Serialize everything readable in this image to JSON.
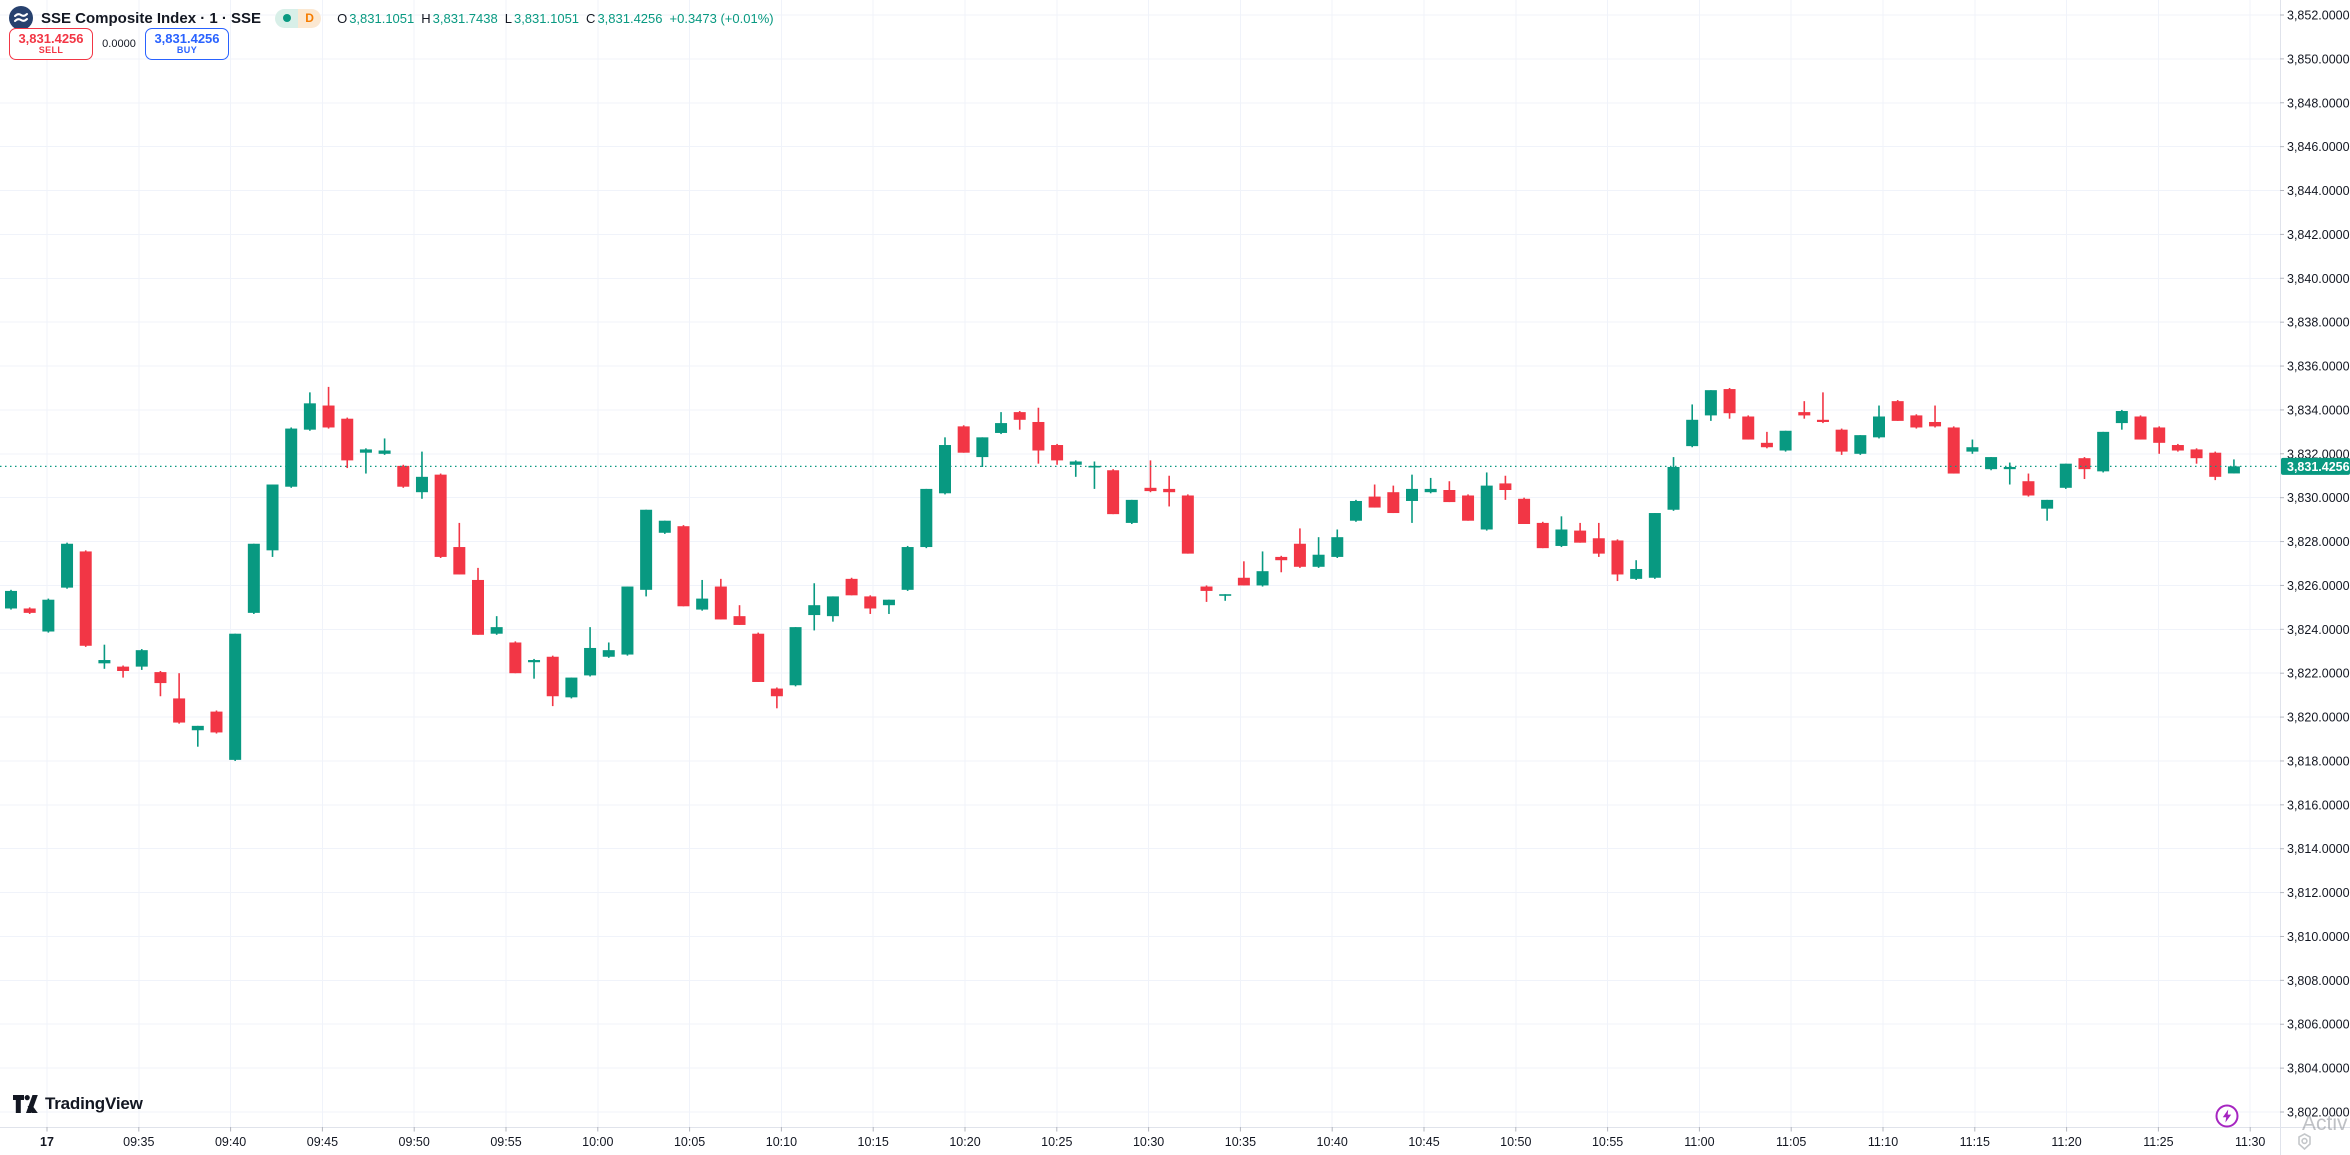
{
  "header": {
    "symbol_title": "SSE Composite Index · 1 · SSE",
    "market_status": "open",
    "interval_badge": "D",
    "ohlc": {
      "o_label": "O",
      "o": "3,831.1051",
      "h_label": "H",
      "h": "3,831.7438",
      "l_label": "L",
      "l": "3,831.1051",
      "c_label": "C",
      "c": "3,831.4256",
      "change": "+0.3473 (+0.01%)"
    },
    "sell_button": {
      "price": "3,831.4256",
      "label": "SELL"
    },
    "spread": "0.0000",
    "buy_button": {
      "price": "3,831.4256",
      "label": "BUY"
    }
  },
  "colors": {
    "up": "#089981",
    "down": "#f23645",
    "sell": "#f23645",
    "buy": "#2962ff",
    "grid": "#f0f3fa",
    "axis_text": "#131722",
    "axis_border": "#e0e3eb",
    "tick": "#b2b5be",
    "current_price_bg": "#089981",
    "lightning": "#a626c1",
    "badge_orange": "#f57c00"
  },
  "footer": {
    "logo_text": "TradingView"
  },
  "watermark": {
    "text": "Activ"
  },
  "chart_data": {
    "type": "candlestick",
    "title": "SSE Composite Index, 1 minute",
    "ylim": [
      3802,
      3852
    ],
    "grid": true,
    "y_ticks": [
      3852,
      3850,
      3848,
      3846,
      3844,
      3842,
      3840,
      3838,
      3836,
      3834,
      3832,
      3830,
      3828,
      3826,
      3824,
      3822,
      3820,
      3818,
      3816,
      3814,
      3812,
      3810,
      3808,
      3806,
      3804,
      3802
    ],
    "x_ticks": [
      "17",
      "09:35",
      "09:40",
      "09:45",
      "09:50",
      "09:55",
      "10:00",
      "10:05",
      "10:10",
      "10:15",
      "10:20",
      "10:25",
      "10:30",
      "10:35",
      "10:40",
      "10:45",
      "10:50",
      "10:55",
      "11:00",
      "11:05",
      "11:10",
      "11:15",
      "11:20",
      "11:25",
      "11:30"
    ],
    "current_price": 3831.4256,
    "current_price_label": "3,831.4256",
    "x": [
      "09:31",
      "09:32",
      "09:33",
      "09:34",
      "09:35",
      "09:36",
      "09:37",
      "09:38",
      "09:39",
      "09:40",
      "09:41",
      "09:42",
      "09:43",
      "09:44",
      "09:45",
      "09:46",
      "09:47",
      "09:48",
      "09:49",
      "09:50",
      "09:51",
      "09:52",
      "09:53",
      "09:54",
      "09:55",
      "09:56",
      "09:57",
      "09:58",
      "09:59",
      "10:00",
      "10:01",
      "10:02",
      "10:03",
      "10:04",
      "10:05",
      "10:06",
      "10:07",
      "10:08",
      "10:09",
      "10:10",
      "10:11",
      "10:12",
      "10:13",
      "10:14",
      "10:15",
      "10:16",
      "10:17",
      "10:18",
      "10:19",
      "10:20",
      "10:21",
      "10:22",
      "10:23",
      "10:24",
      "10:25",
      "10:26",
      "10:27",
      "10:28",
      "10:29",
      "10:30",
      "10:31",
      "10:32",
      "10:33",
      "10:34",
      "10:35",
      "10:36",
      "10:37",
      "10:38",
      "10:39",
      "10:40",
      "10:41",
      "10:42",
      "10:43",
      "10:44",
      "10:45",
      "10:46",
      "10:47",
      "10:48",
      "10:49",
      "10:50",
      "10:51",
      "10:52",
      "10:53",
      "10:54",
      "10:55",
      "10:56",
      "10:57",
      "10:58",
      "10:59",
      "11:00",
      "11:01",
      "11:02",
      "11:03",
      "11:04",
      "11:05",
      "11:06",
      "11:07",
      "11:08",
      "11:09",
      "11:10",
      "11:11",
      "11:12",
      "11:13",
      "11:14",
      "11:15",
      "11:16",
      "11:17",
      "11:18",
      "11:19",
      "11:20",
      "11:21",
      "11:22",
      "11:23",
      "11:24",
      "11:25",
      "11:26",
      "11:27",
      "11:28",
      "11:29",
      "11:30"
    ],
    "ohlc": [
      [
        3824.95,
        3825.8,
        3824.9,
        3825.75
      ],
      [
        3824.95,
        3825.0,
        3824.7,
        3824.75
      ],
      [
        3823.9,
        3825.4,
        3823.85,
        3825.35
      ],
      [
        3825.9,
        3827.95,
        3825.85,
        3827.9
      ],
      [
        3827.55,
        3827.6,
        3823.2,
        3823.25
      ],
      [
        3822.45,
        3823.3,
        3822.2,
        3822.6
      ],
      [
        3822.3,
        3822.35,
        3821.8,
        3822.1
      ],
      [
        3822.3,
        3823.1,
        3822.15,
        3823.05
      ],
      [
        3822.05,
        3822.1,
        3820.95,
        3821.55
      ],
      [
        3820.85,
        3822.0,
        3819.7,
        3819.75
      ],
      [
        3819.4,
        3819.6,
        3818.65,
        3819.6
      ],
      [
        3820.25,
        3820.3,
        3819.25,
        3819.3
      ],
      [
        3818.05,
        3823.8,
        3818.0,
        3823.8
      ],
      [
        3824.75,
        3827.9,
        3824.7,
        3827.9
      ],
      [
        3827.6,
        3830.6,
        3827.3,
        3830.6
      ],
      [
        3830.5,
        3833.2,
        3830.45,
        3833.15
      ],
      [
        3833.1,
        3834.8,
        3833.05,
        3834.3
      ],
      [
        3834.2,
        3835.05,
        3833.15,
        3833.2
      ],
      [
        3833.6,
        3833.65,
        3831.35,
        3831.7
      ],
      [
        3832.05,
        3832.25,
        3831.1,
        3832.2
      ],
      [
        3832.0,
        3832.7,
        3831.95,
        3832.15
      ],
      [
        3831.45,
        3831.5,
        3830.45,
        3830.5
      ],
      [
        3830.25,
        3832.1,
        3829.95,
        3830.95
      ],
      [
        3831.05,
        3831.1,
        3827.25,
        3827.3
      ],
      [
        3827.75,
        3828.85,
        3826.5,
        3826.5
      ],
      [
        3826.25,
        3826.8,
        3823.75,
        3823.75
      ],
      [
        3823.8,
        3824.6,
        3823.75,
        3824.1
      ],
      [
        3823.4,
        3823.45,
        3822.0,
        3822.0
      ],
      [
        3822.5,
        3822.65,
        3821.75,
        3822.6
      ],
      [
        3822.75,
        3822.8,
        3820.5,
        3820.95
      ],
      [
        3820.9,
        3821.8,
        3820.85,
        3821.8
      ],
      [
        3821.9,
        3824.1,
        3821.85,
        3823.15
      ],
      [
        3822.75,
        3823.4,
        3822.7,
        3823.05
      ],
      [
        3822.85,
        3825.95,
        3822.8,
        3825.95
      ],
      [
        3825.8,
        3829.45,
        3825.5,
        3829.45
      ],
      [
        3828.4,
        3828.95,
        3828.35,
        3828.95
      ],
      [
        3828.7,
        3828.75,
        3825.05,
        3825.05
      ],
      [
        3824.9,
        3826.25,
        3824.85,
        3825.4
      ],
      [
        3825.95,
        3826.3,
        3824.45,
        3824.45
      ],
      [
        3824.6,
        3825.1,
        3824.2,
        3824.2
      ],
      [
        3823.8,
        3823.85,
        3821.6,
        3821.6
      ],
      [
        3821.3,
        3821.35,
        3820.4,
        3820.95
      ],
      [
        3821.45,
        3824.1,
        3821.4,
        3824.1
      ],
      [
        3824.65,
        3826.1,
        3823.95,
        3825.1
      ],
      [
        3824.6,
        3825.5,
        3824.35,
        3825.5
      ],
      [
        3826.3,
        3826.35,
        3825.55,
        3825.55
      ],
      [
        3825.5,
        3825.55,
        3824.7,
        3824.95
      ],
      [
        3825.1,
        3825.35,
        3824.7,
        3825.35
      ],
      [
        3825.8,
        3827.8,
        3825.75,
        3827.75
      ],
      [
        3827.75,
        3830.4,
        3827.7,
        3830.4
      ],
      [
        3830.2,
        3832.75,
        3830.15,
        3832.4
      ],
      [
        3833.25,
        3833.3,
        3832.05,
        3832.05
      ],
      [
        3831.85,
        3832.75,
        3831.4,
        3832.75
      ],
      [
        3832.95,
        3833.9,
        3832.9,
        3833.4
      ],
      [
        3833.9,
        3833.95,
        3833.1,
        3833.55
      ],
      [
        3833.45,
        3834.1,
        3831.55,
        3832.15
      ],
      [
        3832.4,
        3832.45,
        3831.5,
        3831.7
      ],
      [
        3831.5,
        3831.7,
        3830.95,
        3831.65
      ],
      [
        3831.4,
        3831.65,
        3830.4,
        3831.45
      ],
      [
        3831.25,
        3831.3,
        3829.25,
        3829.25
      ],
      [
        3828.85,
        3829.9,
        3828.8,
        3829.9
      ],
      [
        3830.45,
        3831.7,
        3830.25,
        3830.3
      ],
      [
        3830.4,
        3831.0,
        3829.6,
        3830.25
      ],
      [
        3830.1,
        3830.15,
        3827.45,
        3827.45
      ],
      [
        3825.95,
        3826.0,
        3825.25,
        3825.75
      ],
      [
        3825.55,
        3825.6,
        3825.3,
        3825.6
      ],
      [
        3826.35,
        3827.1,
        3826.0,
        3826.0
      ],
      [
        3826.0,
        3827.55,
        3825.95,
        3826.65
      ],
      [
        3827.3,
        3827.35,
        3826.6,
        3827.15
      ],
      [
        3827.9,
        3828.6,
        3826.8,
        3826.85
      ],
      [
        3826.85,
        3828.2,
        3826.8,
        3827.4
      ],
      [
        3827.3,
        3828.55,
        3827.25,
        3828.2
      ],
      [
        3828.95,
        3829.9,
        3828.9,
        3829.85
      ],
      [
        3830.05,
        3830.6,
        3829.55,
        3829.55
      ],
      [
        3830.25,
        3830.55,
        3829.3,
        3829.3
      ],
      [
        3829.85,
        3831.05,
        3828.85,
        3830.4
      ],
      [
        3830.25,
        3830.9,
        3830.2,
        3830.4
      ],
      [
        3830.35,
        3830.75,
        3829.8,
        3829.8
      ],
      [
        3830.1,
        3830.15,
        3828.95,
        3828.95
      ],
      [
        3828.55,
        3831.15,
        3828.5,
        3830.55
      ],
      [
        3830.65,
        3831.0,
        3829.9,
        3830.35
      ],
      [
        3829.95,
        3830.0,
        3828.8,
        3828.8
      ],
      [
        3828.85,
        3828.9,
        3827.7,
        3827.7
      ],
      [
        3827.8,
        3829.15,
        3827.75,
        3828.55
      ],
      [
        3828.5,
        3828.85,
        3827.95,
        3827.95
      ],
      [
        3828.15,
        3828.85,
        3827.3,
        3827.45
      ],
      [
        3828.05,
        3828.1,
        3826.2,
        3826.5
      ],
      [
        3826.3,
        3827.15,
        3826.25,
        3826.75
      ],
      [
        3826.35,
        3829.3,
        3826.3,
        3829.3
      ],
      [
        3829.45,
        3831.85,
        3829.4,
        3831.4
      ],
      [
        3832.35,
        3834.25,
        3832.3,
        3833.55
      ],
      [
        3833.75,
        3834.9,
        3833.5,
        3834.9
      ],
      [
        3834.95,
        3835.0,
        3833.6,
        3833.85
      ],
      [
        3833.7,
        3833.75,
        3832.65,
        3832.65
      ],
      [
        3832.5,
        3833.0,
        3832.25,
        3832.3
      ],
      [
        3832.15,
        3833.05,
        3832.1,
        3833.05
      ],
      [
        3833.9,
        3834.4,
        3833.6,
        3833.75
      ],
      [
        3833.55,
        3834.8,
        3833.4,
        3833.45
      ],
      [
        3833.1,
        3833.15,
        3831.95,
        3832.1
      ],
      [
        3832.0,
        3832.85,
        3831.95,
        3832.85
      ],
      [
        3832.75,
        3834.2,
        3832.7,
        3833.7
      ],
      [
        3834.4,
        3834.45,
        3833.5,
        3833.5
      ],
      [
        3833.75,
        3833.8,
        3833.15,
        3833.2
      ],
      [
        3833.45,
        3834.2,
        3833.2,
        3833.25
      ],
      [
        3833.2,
        3833.25,
        3831.1,
        3831.1
      ],
      [
        3832.1,
        3832.65,
        3832.0,
        3832.3
      ],
      [
        3831.3,
        3831.85,
        3831.25,
        3831.85
      ],
      [
        3831.3,
        3831.6,
        3830.6,
        3831.4
      ],
      [
        3830.75,
        3831.1,
        3830.05,
        3830.1
      ],
      [
        3829.5,
        3829.9,
        3828.95,
        3829.9
      ],
      [
        3830.45,
        3831.55,
        3830.4,
        3831.55
      ],
      [
        3831.8,
        3831.85,
        3830.85,
        3831.3
      ],
      [
        3831.2,
        3833.0,
        3831.15,
        3833.0
      ],
      [
        3833.4,
        3834.0,
        3833.1,
        3833.95
      ],
      [
        3833.7,
        3833.75,
        3832.65,
        3832.65
      ],
      [
        3833.2,
        3833.25,
        3832.0,
        3832.5
      ],
      [
        3832.4,
        3832.45,
        3832.1,
        3832.15
      ],
      [
        3832.2,
        3832.25,
        3831.55,
        3831.8
      ],
      [
        3832.05,
        3832.1,
        3830.8,
        3830.95
      ],
      [
        3831.1051,
        3831.7438,
        3831.1051,
        3831.4256
      ]
    ]
  }
}
